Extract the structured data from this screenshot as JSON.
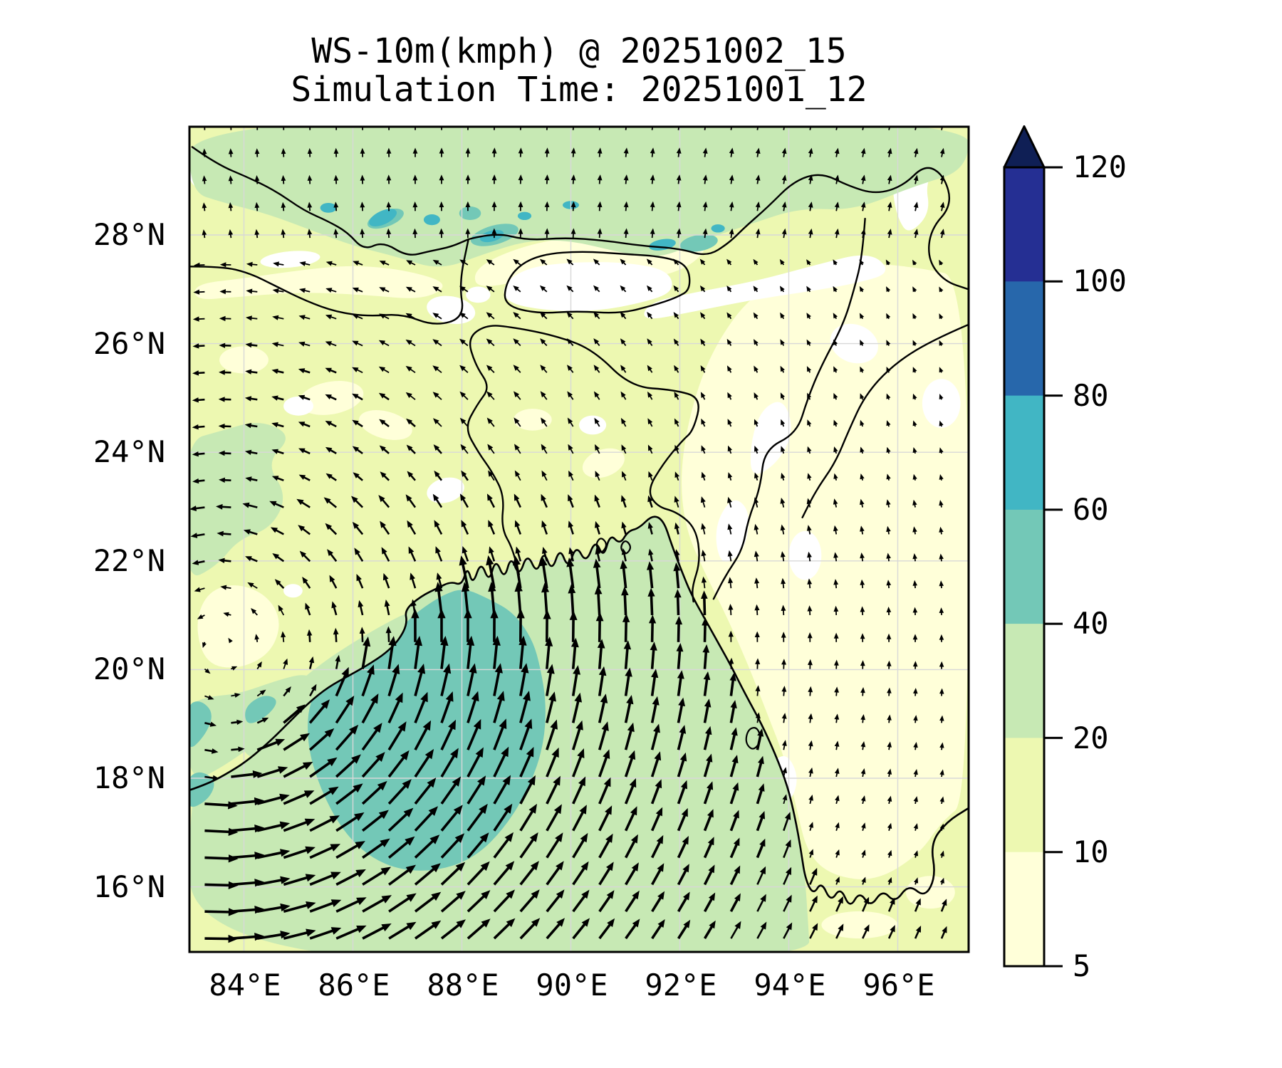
{
  "figure": {
    "title": "WS-10m(kmph) @ 20251002_15",
    "subtitle": "Simulation Time: 20251001_12"
  },
  "chart_data": {
    "type": "heatmap",
    "variable": "WS-10m",
    "units": "kmph",
    "valid_time": "20251002_15",
    "simulation_time": "20251001_12",
    "projection": "lon-lat map of Bay of Bengal / Bangladesh region with quiver wind vectors",
    "extent": {
      "lon_min": 83.0,
      "lon_max": 97.3,
      "lat_min": 14.8,
      "lat_max": 30.0
    },
    "grid": true,
    "x_tick_labels": [
      "84°E",
      "86°E",
      "88°E",
      "90°E",
      "92°E",
      "94°E",
      "96°E"
    ],
    "x_tick_lons": [
      84,
      86,
      88,
      90,
      92,
      94,
      96
    ],
    "y_tick_labels": [
      "16°N",
      "18°N",
      "20°N",
      "22°N",
      "24°N",
      "26°N",
      "28°N"
    ],
    "y_tick_lats": [
      16,
      18,
      20,
      22,
      24,
      26,
      28
    ],
    "levels": [
      5,
      10,
      20,
      40,
      60,
      80,
      100,
      120
    ],
    "band_colors": [
      "#ffffd9",
      "#edf8b1",
      "#c7e9b4",
      "#73c8b7",
      "#41b6c4",
      "#2767ab",
      "#252f93"
    ],
    "under_color": "#ffffff",
    "over_color": "#0f1f55",
    "gridline_color": "#d8d8d8",
    "coastline_color": "#000000",
    "colorbar": {
      "orientation": "vertical",
      "extend": "max",
      "tick_labels": [
        "120",
        "100",
        "80",
        "60",
        "40",
        "20",
        "10",
        "5"
      ]
    },
    "wind_field": {
      "type": "quiver",
      "arrow_color": "#000000",
      "grid_spacing_deg": 0.5,
      "vortex": {
        "center_lon": 83.6,
        "center_lat": 20.4,
        "max_speed_kmph": 50,
        "radius_deg": 4,
        "rotation": "counterclockwise"
      },
      "notes": "Cyclonic circulation centered near the Odisha coast; strongest 40-60 kmph winds over the northwest Bay of Bengal; broad northward flow over the eastern bay; easterlies over the Gangetic plain; weak winds over northeast hills; upslope N-NE arrows along the Himalayan belt"
    },
    "regions": [
      {
        "band": "40-60",
        "where": "northwest Bay of Bengal off Odisha / West Bengal coast, ~85.2-89.6E, 16.3-21.6N; small spots along left edge 83-84.6E, 17.4-19.5N"
      },
      {
        "band": "20-40",
        "where": "rest of the Bay of Bengal west of ~94.3E; Himalayan belt along 27.8-30N; inland strip behind the Odisha coast and along 83-85E, 18-24.5N"
      },
      {
        "band": "10-20",
        "where": "most plains of India, West Bengal and Bangladesh (base shading)"
      },
      {
        "band": "5-10",
        "where": "northeast India, Myanmar lowlands east of the coast, strip south of Nepal, southeast corner of the bay"
      },
      {
        "band": "<5 (white)",
        "where": "calm pockets: Bhutan interior, Assam valley, Manipur-Mizoram hills, far northeast corner, Myanmar coastal hills"
      },
      {
        "band": "60-80",
        "where": "small spots along the high Himalaya near 85.5-92.7E, 27.8-28.6N"
      }
    ]
  }
}
